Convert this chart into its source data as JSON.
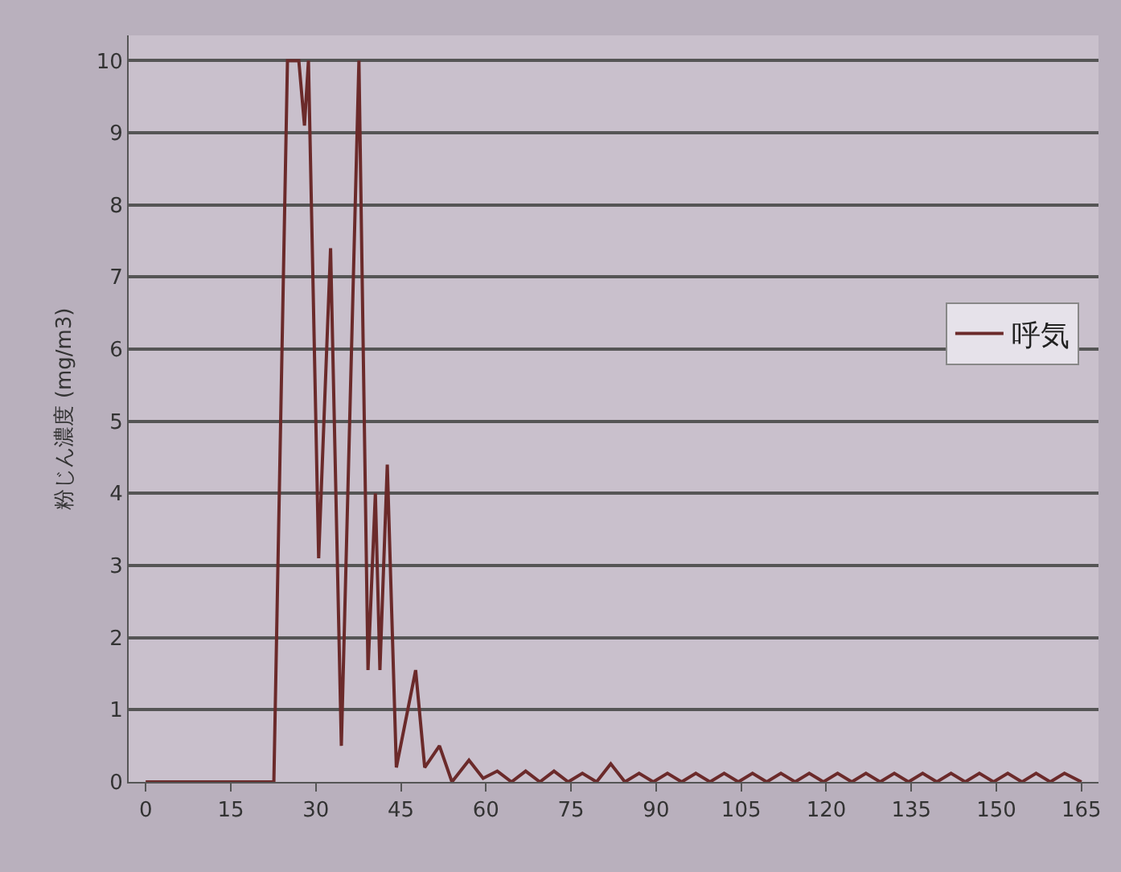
{
  "chart_data": {
    "type": "line",
    "ylabel": "粉じん濃度 (mg/m3)",
    "xlim": [
      -3,
      168
    ],
    "xticks": [
      0,
      15,
      30,
      45,
      60,
      75,
      90,
      105,
      120,
      135,
      150,
      165
    ],
    "ylim": [
      0,
      10.35
    ],
    "yticks": [
      0,
      1,
      2,
      3,
      4,
      5,
      6,
      7,
      8,
      9,
      10
    ],
    "grid": "y",
    "legend": "right",
    "marker": "none",
    "line_style": "solid",
    "series": [
      {
        "name": "呼気",
        "color": "#6b2a2a",
        "x": [
          0,
          22.6,
          25,
          27,
          28,
          28.7,
          30.5,
          32.6,
          34.5,
          37.6,
          39.2,
          40.5,
          41.3,
          42.6,
          44.2,
          47.6,
          49.2,
          51.8,
          54,
          57,
          59.5,
          62,
          64.5,
          67,
          69.5,
          72,
          74.5,
          77,
          79.5,
          82,
          84.5,
          87,
          89.5,
          92,
          94.5,
          97,
          99.5,
          102,
          104.5,
          107,
          109.5,
          112,
          114.5,
          117,
          119.5,
          122,
          124.5,
          127,
          129.5,
          132,
          134.5,
          137,
          139.5,
          142,
          144.5,
          147,
          149.5,
          152,
          154.5,
          157,
          159.5,
          162,
          165
        ],
        "values": [
          0,
          0,
          10,
          10,
          9.1,
          10,
          3.1,
          7.4,
          0.5,
          10,
          1.55,
          4.0,
          1.55,
          4.4,
          0.2,
          1.55,
          0.2,
          0.5,
          0,
          0.3,
          0.05,
          0.15,
          0,
          0.15,
          0,
          0.15,
          0,
          0.12,
          0,
          0.25,
          0,
          0.12,
          0,
          0.12,
          0,
          0.12,
          0,
          0.12,
          0,
          0.12,
          0,
          0.12,
          0,
          0.12,
          0,
          0.12,
          0,
          0.12,
          0,
          0.12,
          0,
          0.12,
          0,
          0.12,
          0,
          0.12,
          0,
          0.12,
          0,
          0.12,
          0,
          0.12,
          0
        ]
      }
    ]
  }
}
